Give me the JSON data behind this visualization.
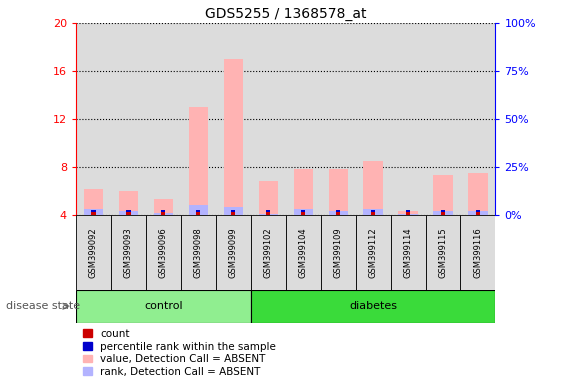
{
  "title": "GDS5255 / 1368578_at",
  "samples": [
    "GSM399092",
    "GSM399093",
    "GSM399096",
    "GSM399098",
    "GSM399099",
    "GSM399102",
    "GSM399104",
    "GSM399109",
    "GSM399112",
    "GSM399114",
    "GSM399115",
    "GSM399116"
  ],
  "n_control": 5,
  "n_diabetes": 7,
  "value_absent": [
    6.2,
    6.0,
    5.3,
    13.0,
    17.0,
    6.8,
    7.8,
    7.8,
    8.5,
    4.3,
    7.3,
    7.5
  ],
  "rank_absent": [
    4.5,
    4.3,
    4.2,
    4.8,
    4.7,
    4.1,
    4.5,
    4.3,
    4.5,
    4.1,
    4.3,
    4.3
  ],
  "ylim_left": [
    4,
    20
  ],
  "ylim_right": [
    0,
    100
  ],
  "yticks_left": [
    4,
    8,
    12,
    16,
    20
  ],
  "yticks_right": [
    0,
    25,
    50,
    75,
    100
  ],
  "ytick_labels_right": [
    "0%",
    "25%",
    "50%",
    "75%",
    "100%"
  ],
  "color_value_absent": "#FFB3B3",
  "color_rank_absent": "#B3B3FF",
  "color_count": "#CC0000",
  "color_percentile": "#0000CC",
  "color_bg_plot": "#DCDCDC",
  "color_control_bg": "#90EE90",
  "color_diabetes_bg": "#3ADB3A",
  "disease_state_label": "disease state",
  "control_label": "control",
  "diabetes_label": "diabetes",
  "legend_items": [
    {
      "label": "count",
      "color": "#CC0000"
    },
    {
      "label": "percentile rank within the sample",
      "color": "#0000CC"
    },
    {
      "label": "value, Detection Call = ABSENT",
      "color": "#FFB3B3"
    },
    {
      "label": "rank, Detection Call = ABSENT",
      "color": "#B3B3FF"
    }
  ]
}
